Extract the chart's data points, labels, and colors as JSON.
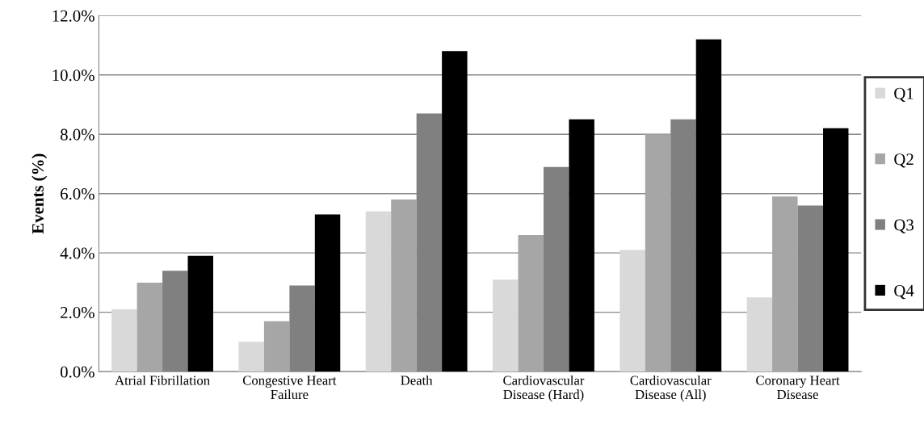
{
  "chart_data": {
    "type": "bar",
    "ylabel": "Events (%)",
    "categories": [
      "Atrial Fibrillation",
      "Congestive Heart\nFailure",
      "Death",
      "Cardiovascular\nDisease (Hard)",
      "Cardiovascular\nDisease (All)",
      "Coronary Heart\nDisease"
    ],
    "series": [
      {
        "name": "Q1",
        "color": "#d9d9d9",
        "values": [
          2.1,
          1.0,
          5.4,
          3.1,
          4.1,
          2.5
        ]
      },
      {
        "name": "Q2",
        "color": "#a6a6a6",
        "values": [
          3.0,
          1.7,
          5.8,
          4.6,
          8.0,
          5.9
        ]
      },
      {
        "name": "Q3",
        "color": "#808080",
        "values": [
          3.4,
          2.9,
          8.7,
          6.9,
          8.5,
          5.6
        ]
      },
      {
        "name": "Q4",
        "color": "#000000",
        "values": [
          3.9,
          5.3,
          10.8,
          8.5,
          11.2,
          8.2
        ]
      }
    ],
    "ylim": [
      0,
      12
    ],
    "yticks": [
      {
        "value": 0,
        "label": "0.0%"
      },
      {
        "value": 2,
        "label": "2.0%"
      },
      {
        "value": 4,
        "label": "4.0%"
      },
      {
        "value": 6,
        "label": "6.0%"
      },
      {
        "value": 8,
        "label": "8.0%"
      },
      {
        "value": 10,
        "label": "10.0%"
      },
      {
        "value": 12,
        "label": "12.0%"
      }
    ],
    "grid": "y",
    "legend": "right"
  }
}
